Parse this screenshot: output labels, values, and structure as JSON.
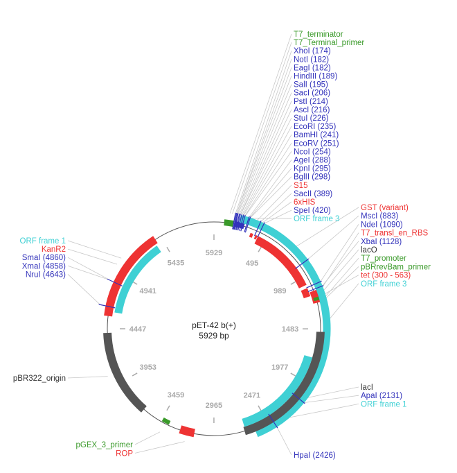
{
  "plasmid": {
    "name": "pET-42 b(+)",
    "size_label": "5929 bp",
    "length": 5929
  },
  "colors": {
    "site": "#3333bb",
    "primer": "#3a9a2a",
    "feature": "#ee3333",
    "orf": "#3fd0d4",
    "origin": "#555555",
    "other": "#333333",
    "backbone": "#555555",
    "tick": "#aaaaaa",
    "leader": "#c8c8c8"
  },
  "ticks": [
    "495",
    "989",
    "1483",
    "1977",
    "2471",
    "2965",
    "3459",
    "3953",
    "4447",
    "4941",
    "5435",
    "5929"
  ],
  "labels": {
    "top": [
      {
        "text": "T7_terminator",
        "kind": "primer"
      },
      {
        "text": "T7_Terminal_primer",
        "kind": "primer"
      },
      {
        "text": "XhoI (174)",
        "kind": "site"
      },
      {
        "text": "NotI (182)",
        "kind": "site"
      },
      {
        "text": "EagI (182)",
        "kind": "site"
      },
      {
        "text": "HindIII (189)",
        "kind": "site"
      },
      {
        "text": "SalI (195)",
        "kind": "site"
      },
      {
        "text": "SacI (206)",
        "kind": "site"
      },
      {
        "text": "PstI (214)",
        "kind": "site"
      },
      {
        "text": "AscI (216)",
        "kind": "site"
      },
      {
        "text": "StuI (226)",
        "kind": "site"
      },
      {
        "text": "EcoRI (235)",
        "kind": "site"
      },
      {
        "text": "BamHI (241)",
        "kind": "site"
      },
      {
        "text": "EcoRV (251)",
        "kind": "site"
      },
      {
        "text": "NcoI (254)",
        "kind": "site"
      },
      {
        "text": "AgeI (288)",
        "kind": "site"
      },
      {
        "text": "KpnI (295)",
        "kind": "site"
      },
      {
        "text": "BglII (298)",
        "kind": "site"
      },
      {
        "text": "S15",
        "kind": "feature"
      },
      {
        "text": "SacII (389)",
        "kind": "site"
      },
      {
        "text": "6xHIS",
        "kind": "feature"
      },
      {
        "text": "SpeI (420)",
        "kind": "site"
      },
      {
        "text": "ORF frame 3",
        "kind": "orf"
      }
    ],
    "right_mid": [
      {
        "text": "GST (variant)",
        "kind": "feature"
      },
      {
        "text": "MscI (883)",
        "kind": "site"
      },
      {
        "text": "NdeI (1090)",
        "kind": "site"
      },
      {
        "text": "T7_transl_en_RBS",
        "kind": "feature"
      },
      {
        "text": "XbaI (1128)",
        "kind": "site"
      },
      {
        "text": "lacO",
        "kind": "other"
      },
      {
        "text": "T7_promoter",
        "kind": "primer"
      },
      {
        "text": "pBRrevBam_primer",
        "kind": "primer"
      },
      {
        "text": "tet (300 - 563)",
        "kind": "feature"
      },
      {
        "text": "ORF frame 3",
        "kind": "orf"
      }
    ],
    "right_low": [
      {
        "text": "lacI",
        "kind": "other"
      },
      {
        "text": "ApaI (2131)",
        "kind": "site"
      },
      {
        "text": "ORF frame 1",
        "kind": "orf"
      }
    ],
    "bottom_right": [
      {
        "text": "HpaI (2426)",
        "kind": "site"
      }
    ],
    "left": [
      {
        "text": "ORF frame 1",
        "kind": "orf"
      },
      {
        "text": "KanR2",
        "kind": "feature"
      },
      {
        "text": "SmaI (4860)",
        "kind": "site"
      },
      {
        "text": "XmaI (4858)",
        "kind": "site"
      },
      {
        "text": "NruI (4643)",
        "kind": "site"
      }
    ],
    "left_mid": [
      {
        "text": "pBR322_origin",
        "kind": "other"
      }
    ],
    "bottom_left": [
      {
        "text": "pGEX_3_primer",
        "kind": "primer"
      },
      {
        "text": "ROP",
        "kind": "feature"
      }
    ]
  }
}
